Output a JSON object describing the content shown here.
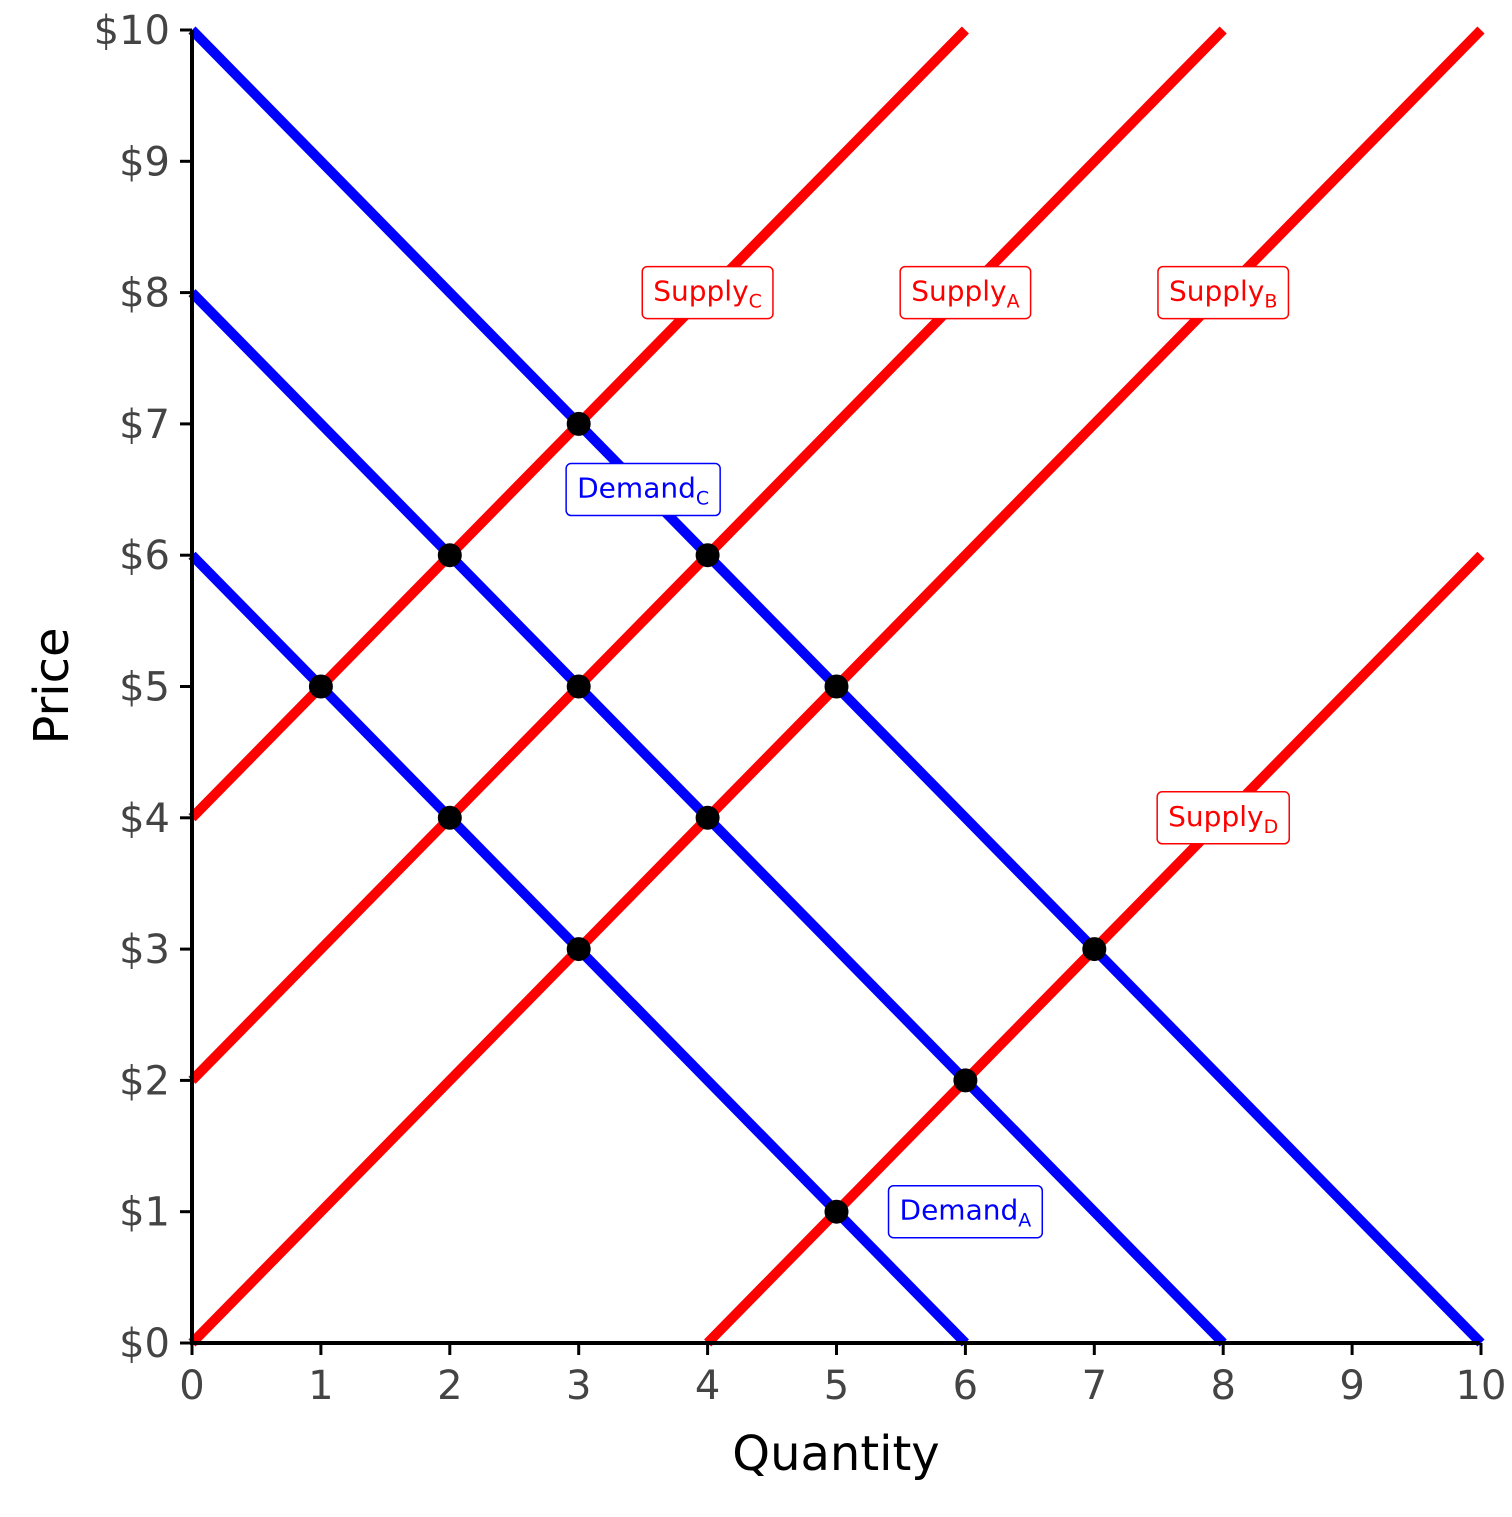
{
  "chart_data": {
    "type": "line",
    "title": "",
    "xlabel": "Quantity",
    "ylabel": "Price",
    "xlim": [
      0,
      10
    ],
    "ylim": [
      0,
      10
    ],
    "x_ticks": [
      "0",
      "1",
      "2",
      "3",
      "4",
      "5",
      "6",
      "7",
      "8",
      "9",
      "10"
    ],
    "y_ticks": [
      "$0",
      "$1",
      "$2",
      "$3",
      "$4",
      "$5",
      "$6",
      "$7",
      "$8",
      "$9",
      "$10"
    ],
    "grid": false,
    "colors": {
      "demand": "#0000ff",
      "supply": "#ff0000",
      "point": "#000000"
    },
    "series": [
      {
        "label": "Demand",
        "sub": "A",
        "kind": "demand",
        "x": [
          0,
          8
        ],
        "y": [
          8,
          0
        ],
        "label_at": [
          6,
          1
        ]
      },
      {
        "label": "Demand",
        "sub": "C",
        "kind": "demand",
        "x": [
          0,
          10
        ],
        "y": [
          10,
          0
        ],
        "label_at": [
          3.5,
          6.5
        ]
      },
      {
        "label": "",
        "sub": "",
        "kind": "demand",
        "x": [
          0,
          6
        ],
        "y": [
          6,
          0
        ],
        "label_at": null
      },
      {
        "label": "Supply",
        "sub": "C",
        "kind": "supply",
        "x": [
          0,
          6
        ],
        "y": [
          4,
          10
        ],
        "label_at": [
          4,
          8
        ]
      },
      {
        "label": "Supply",
        "sub": "A",
        "kind": "supply",
        "x": [
          0,
          8
        ],
        "y": [
          2,
          10
        ],
        "label_at": [
          6,
          8
        ]
      },
      {
        "label": "Supply",
        "sub": "B",
        "kind": "supply",
        "x": [
          0,
          10
        ],
        "y": [
          0,
          10
        ],
        "label_at": [
          8,
          8
        ]
      },
      {
        "label": "Supply",
        "sub": "D",
        "kind": "supply",
        "x": [
          4,
          10
        ],
        "y": [
          0,
          6
        ],
        "label_at": [
          8,
          4
        ]
      }
    ],
    "points": [
      [
        1,
        5
      ],
      [
        2,
        6
      ],
      [
        3,
        7
      ],
      [
        2,
        4
      ],
      [
        3,
        5
      ],
      [
        4,
        6
      ],
      [
        3,
        3
      ],
      [
        4,
        4
      ],
      [
        5,
        5
      ],
      [
        5,
        1
      ],
      [
        6,
        2
      ],
      [
        7,
        3
      ]
    ]
  }
}
